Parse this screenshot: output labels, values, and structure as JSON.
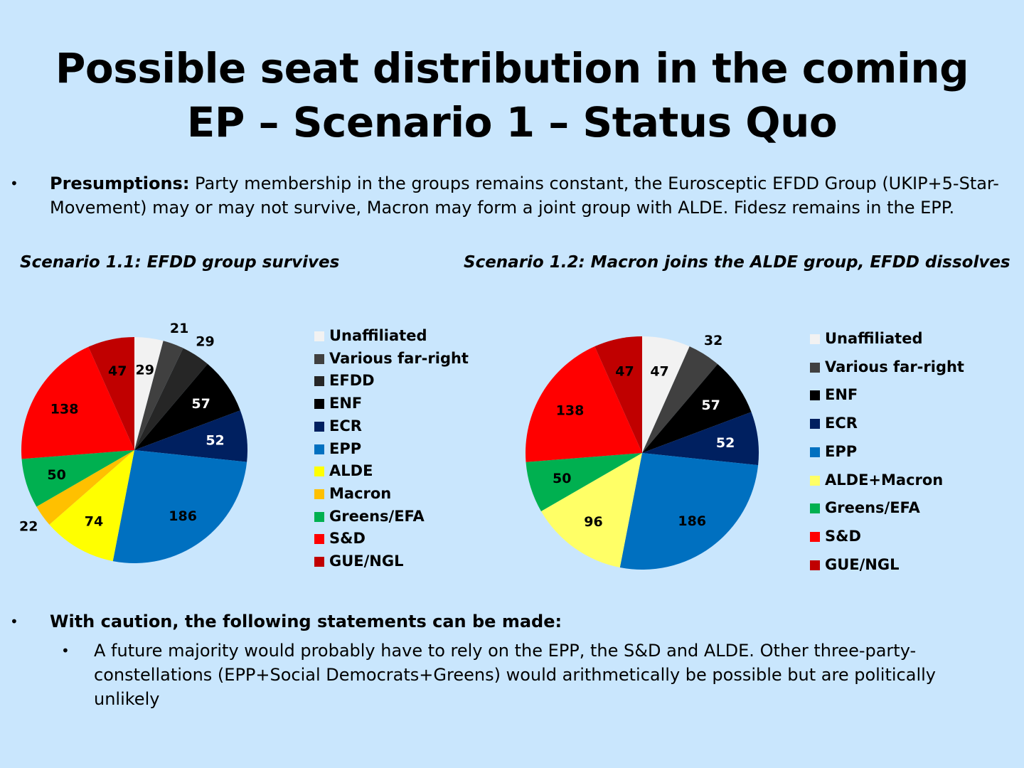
{
  "title": {
    "line1": "Possible seat distribution in the coming",
    "line2": "EP – Scenario 1 – Status Quo"
  },
  "presumptions": {
    "lead": "Presumptions:",
    "text": " Party membership in the groups remains constant, the Eurosceptic EFDD Group (UKIP+5-Star-Movement) may or may not survive,  Macron may form a joint group with ALDE. Fidesz remains in the EPP."
  },
  "bullet_marker": "•",
  "caution": {
    "lead": "With caution, the following statements can be made:",
    "sub": "A future majority would probably have to rely on the EPP, the S&D and ALDE. Other three-party-constellations (EPP+Social Democrats+Greens) would arithmetically be possible but are politically unlikely"
  },
  "chart_data": [
    {
      "type": "pie",
      "title": "Scenario 1.1: EFDD group survives",
      "categories": [
        "Unaffiliated",
        "Various far-right",
        "EFDD",
        "ENF",
        "ECR",
        "EPP",
        "ALDE",
        "Macron",
        "Greens/EFA",
        "S&D",
        "GUE/NGL"
      ],
      "values": [
        29,
        21,
        29,
        57,
        52,
        186,
        74,
        22,
        50,
        138,
        47
      ],
      "colors": [
        "#f2f2f2",
        "#404040",
        "#262626",
        "#000000",
        "#002060",
        "#0070c0",
        "#ffff00",
        "#ffc000",
        "#00b050",
        "#ff0000",
        "#c00000"
      ],
      "label_colors": [
        "#000000",
        "#000000",
        "#000000",
        "#ffffff",
        "#ffffff",
        "#000000",
        "#000000",
        "#000000",
        "#000000",
        "#000000",
        "#000000"
      ],
      "label_outside": [
        false,
        true,
        true,
        false,
        false,
        false,
        false,
        true,
        false,
        false,
        false
      ],
      "legend": [
        "Unaffiliated",
        "Various far-right",
        "EFDD",
        "ENF",
        "ECR",
        "EPP",
        "ALDE",
        "Macron",
        "Greens/EFA",
        "S&D",
        "GUE/NGL"
      ]
    },
    {
      "type": "pie",
      "title": "Scenario 1.2: Macron joins the ALDE group, EFDD dissolves",
      "categories": [
        "Unaffiliated",
        "Various far-right",
        "ENF",
        "ECR",
        "EPP",
        "ALDE+Macron",
        "Greens/EFA",
        "S&D",
        "GUE/NGL"
      ],
      "values": [
        47,
        32,
        57,
        52,
        186,
        96,
        50,
        138,
        47
      ],
      "colors": [
        "#f2f2f2",
        "#404040",
        "#000000",
        "#002060",
        "#0070c0",
        "#ffff66",
        "#00b050",
        "#ff0000",
        "#c00000"
      ],
      "label_colors": [
        "#000000",
        "#000000",
        "#ffffff",
        "#ffffff",
        "#000000",
        "#000000",
        "#000000",
        "#000000",
        "#000000"
      ],
      "label_outside": [
        false,
        true,
        false,
        false,
        false,
        false,
        false,
        false,
        false
      ],
      "legend": [
        "Unaffiliated",
        "Various far-right",
        "ENF",
        "ECR",
        "EPP",
        "ALDE+Macron",
        "Greens/EFA",
        "S&D",
        "GUE/NGL"
      ]
    }
  ]
}
